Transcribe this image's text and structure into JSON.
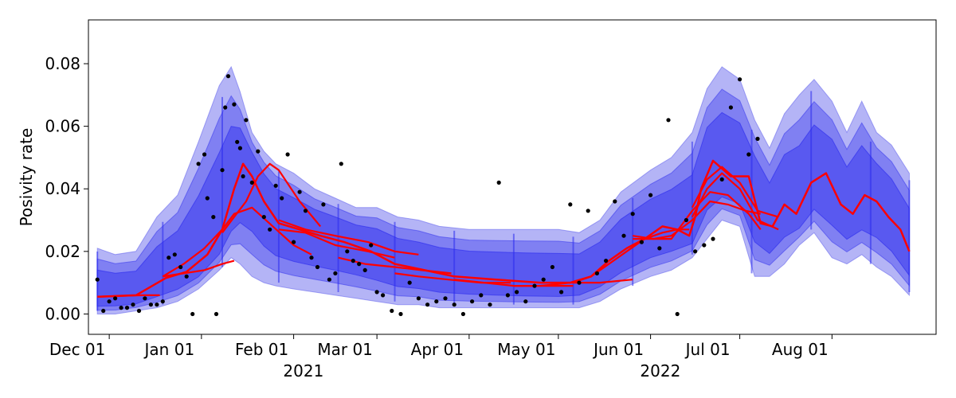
{
  "chart_data": {
    "type": "line",
    "title": "",
    "xlabel": "",
    "ylabel": "Posivity rate",
    "ylim": [
      -0.0065,
      0.094
    ],
    "xlim": [
      "2021-11-24",
      "2022-09-05"
    ],
    "grid": false,
    "legend": "none",
    "y_ticks": [
      0.0,
      0.02,
      0.04,
      0.06,
      0.08
    ],
    "y_tick_labels": [
      "0.00",
      "0.02",
      "0.04",
      "0.06",
      "0.08"
    ],
    "x_ticks": [
      "2021-12-01",
      "2022-01-01",
      "2022-02-01",
      "2022-03-01",
      "2022-04-01",
      "2022-05-01",
      "2022-06-01",
      "2022-07-01",
      "2022-08-01"
    ],
    "x_tick_labels": [
      "Dec 01",
      "Jan 01",
      "Feb 01",
      "Mar 01",
      "Apr 01",
      "May 01",
      "Jun 01",
      "Jul 01",
      "Aug 01"
    ],
    "year_labels": [
      {
        "text": "2021",
        "date": "2022-02-15"
      },
      {
        "text": "2022",
        "date": "2022-06-15"
      }
    ],
    "colors": {
      "outer_band": "#6a6aee",
      "mid_band": "#4040ee",
      "inner_band": "#2a2aee",
      "forecast_line": "#ff0000",
      "observations": "#000000"
    },
    "band_envelope": {
      "dates": [
        "2021-11-27",
        "2021-12-03",
        "2021-12-10",
        "2021-12-17",
        "2021-12-24",
        "2021-12-31",
        "2022-01-07",
        "2022-01-11",
        "2022-01-14",
        "2022-01-18",
        "2022-01-22",
        "2022-01-26",
        "2022-02-01",
        "2022-02-08",
        "2022-02-15",
        "2022-02-22",
        "2022-03-01",
        "2022-03-08",
        "2022-03-15",
        "2022-03-22",
        "2022-04-01",
        "2022-04-10",
        "2022-04-20",
        "2022-05-01",
        "2022-05-08",
        "2022-05-15",
        "2022-05-22",
        "2022-06-01",
        "2022-06-08",
        "2022-06-15",
        "2022-06-20",
        "2022-06-25",
        "2022-07-01",
        "2022-07-06",
        "2022-07-11",
        "2022-07-16",
        "2022-07-21",
        "2022-07-26",
        "2022-08-01",
        "2022-08-06",
        "2022-08-11",
        "2022-08-16",
        "2022-08-21",
        "2022-08-27"
      ],
      "upper": [
        0.021,
        0.019,
        0.02,
        0.031,
        0.038,
        0.055,
        0.073,
        0.079,
        0.071,
        0.058,
        0.052,
        0.048,
        0.045,
        0.04,
        0.037,
        0.034,
        0.034,
        0.031,
        0.03,
        0.028,
        0.027,
        0.027,
        0.027,
        0.027,
        0.026,
        0.03,
        0.039,
        0.046,
        0.05,
        0.058,
        0.072,
        0.079,
        0.075,
        0.062,
        0.053,
        0.064,
        0.07,
        0.075,
        0.068,
        0.058,
        0.068,
        0.058,
        0.054,
        0.045
      ],
      "lower": [
        0.0,
        0.0,
        0.001,
        0.002,
        0.004,
        0.008,
        0.014,
        0.018,
        0.016,
        0.012,
        0.01,
        0.009,
        0.008,
        0.007,
        0.006,
        0.005,
        0.004,
        0.003,
        0.003,
        0.002,
        0.002,
        0.002,
        0.002,
        0.002,
        0.002,
        0.004,
        0.008,
        0.012,
        0.014,
        0.018,
        0.024,
        0.03,
        0.028,
        0.012,
        0.012,
        0.016,
        0.022,
        0.026,
        0.018,
        0.016,
        0.019,
        0.015,
        0.012,
        0.006
      ]
    },
    "band_starts": [
      "2021-11-27",
      "2021-12-19",
      "2022-01-08",
      "2022-01-27",
      "2022-02-16",
      "2022-03-07",
      "2022-03-27",
      "2022-04-16",
      "2022-05-06",
      "2022-05-26",
      "2022-06-15",
      "2022-07-05",
      "2022-07-25",
      "2022-08-14",
      "2022-08-27"
    ],
    "series": [
      {
        "name": "",
        "x": [
          "2021-11-27",
          "2021-12-10",
          "2021-12-20",
          "2021-12-27",
          "2022-01-03",
          "2022-01-08",
          "2022-01-12",
          "2022-01-15",
          "2022-01-18",
          "2022-01-22",
          "2022-01-27",
          "2022-02-03",
          "2022-02-10",
          "2022-02-18",
          "2022-02-27",
          "2022-03-07",
          "2022-03-17",
          "2022-03-27",
          "2022-04-10",
          "2022-04-25",
          "2022-05-05",
          "2022-05-12",
          "2022-05-18",
          "2022-05-24",
          "2022-05-30",
          "2022-06-05",
          "2022-06-10",
          "2022-06-14",
          "2022-06-16",
          "2022-06-18",
          "2022-06-22",
          "2022-06-28",
          "2022-07-04",
          "2022-07-08",
          "2022-07-12",
          "2022-07-16",
          "2022-07-20",
          "2022-07-25",
          "2022-07-30",
          "2022-08-04",
          "2022-08-08",
          "2022-08-12",
          "2022-08-16",
          "2022-08-20",
          "2022-08-24",
          "2022-08-27"
        ],
        "y": [
          0.0055,
          0.006,
          0.0115,
          0.0135,
          0.019,
          0.027,
          0.04,
          0.048,
          0.044,
          0.036,
          0.029,
          0.027,
          0.025,
          0.023,
          0.02,
          0.016,
          0.014,
          0.012,
          0.011,
          0.01,
          0.01,
          0.012,
          0.017,
          0.021,
          0.024,
          0.028,
          0.027,
          0.025,
          0.031,
          0.04,
          0.049,
          0.044,
          0.044,
          0.029,
          0.028,
          0.035,
          0.032,
          0.042,
          0.045,
          0.035,
          0.032,
          0.038,
          0.036,
          0.031,
          0.027,
          0.02
        ]
      }
    ],
    "forecast_segments": [
      {
        "x": [
          "2021-11-27",
          "2021-12-05",
          "2021-12-12",
          "2021-12-18"
        ],
        "y": [
          0.0055,
          0.0058,
          0.006,
          0.006
        ]
      },
      {
        "x": [
          "2021-12-19",
          "2021-12-26",
          "2022-01-02",
          "2022-01-08",
          "2022-01-12"
        ],
        "y": [
          0.012,
          0.013,
          0.014,
          0.016,
          0.017
        ]
      },
      {
        "x": [
          "2021-12-19",
          "2021-12-26",
          "2022-01-02",
          "2022-01-08",
          "2022-01-12",
          "2022-01-18",
          "2022-01-25",
          "2022-02-01",
          "2022-02-07"
        ],
        "y": [
          0.012,
          0.016,
          0.021,
          0.027,
          0.032,
          0.034,
          0.028,
          0.022,
          0.019
        ]
      },
      {
        "x": [
          "2022-01-08",
          "2022-01-12",
          "2022-01-16",
          "2022-01-20",
          "2022-01-24",
          "2022-01-27",
          "2022-02-03",
          "2022-02-10"
        ],
        "y": [
          0.026,
          0.031,
          0.036,
          0.044,
          0.048,
          0.046,
          0.036,
          0.028
        ]
      },
      {
        "x": [
          "2022-01-27",
          "2022-02-05",
          "2022-02-15",
          "2022-02-26",
          "2022-03-07",
          "2022-03-15"
        ],
        "y": [
          0.03,
          0.027,
          0.025,
          0.023,
          0.02,
          0.019
        ]
      },
      {
        "x": [
          "2022-01-27",
          "2022-02-05",
          "2022-02-15",
          "2022-02-26",
          "2022-03-07"
        ],
        "y": [
          0.027,
          0.026,
          0.022,
          0.02,
          0.018
        ]
      },
      {
        "x": [
          "2022-02-16",
          "2022-02-25",
          "2022-03-07",
          "2022-03-16",
          "2022-03-26"
        ],
        "y": [
          0.018,
          0.016,
          0.015,
          0.014,
          0.013
        ]
      },
      {
        "x": [
          "2022-03-07",
          "2022-03-15",
          "2022-03-25",
          "2022-04-05",
          "2022-04-15"
        ],
        "y": [
          0.013,
          0.012,
          0.011,
          0.01,
          0.01
        ]
      },
      {
        "x": [
          "2022-03-27",
          "2022-04-06",
          "2022-04-16",
          "2022-04-28",
          "2022-05-06"
        ],
        "y": [
          0.011,
          0.01,
          0.009,
          0.009,
          0.009
        ]
      },
      {
        "x": [
          "2022-04-16",
          "2022-04-25",
          "2022-05-05",
          "2022-05-15",
          "2022-05-26"
        ],
        "y": [
          0.009,
          0.009,
          0.01,
          0.01,
          0.011
        ]
      },
      {
        "x": [
          "2022-05-06",
          "2022-05-12",
          "2022-05-18",
          "2022-05-24",
          "2022-05-30",
          "2022-06-05",
          "2022-06-10",
          "2022-06-14"
        ],
        "y": [
          0.01,
          0.012,
          0.016,
          0.02,
          0.024,
          0.026,
          0.027,
          0.027
        ]
      },
      {
        "x": [
          "2022-05-26",
          "2022-06-02",
          "2022-06-08",
          "2022-06-15",
          "2022-06-21",
          "2022-06-27",
          "2022-07-03",
          "2022-07-08"
        ],
        "y": [
          0.024,
          0.024,
          0.025,
          0.03,
          0.036,
          0.035,
          0.033,
          0.032
        ]
      },
      {
        "x": [
          "2022-05-26",
          "2022-06-02",
          "2022-06-08",
          "2022-06-15",
          "2022-06-21",
          "2022-06-27",
          "2022-07-04",
          "2022-07-08"
        ],
        "y": [
          0.025,
          0.024,
          0.024,
          0.033,
          0.039,
          0.038,
          0.032,
          0.027
        ]
      },
      {
        "x": [
          "2022-06-15",
          "2022-06-20",
          "2022-06-25",
          "2022-07-01",
          "2022-07-07",
          "2022-07-14"
        ],
        "y": [
          0.034,
          0.043,
          0.047,
          0.042,
          0.033,
          0.031
        ]
      },
      {
        "x": [
          "2022-06-15",
          "2022-06-20",
          "2022-06-25",
          "2022-07-01",
          "2022-07-07",
          "2022-07-14"
        ],
        "y": [
          0.031,
          0.04,
          0.045,
          0.04,
          0.03,
          0.027
        ]
      }
    ],
    "observations": {
      "x": [
        "2021-11-27",
        "2021-11-29",
        "2021-12-01",
        "2021-12-03",
        "2021-12-05",
        "2021-12-07",
        "2021-12-09",
        "2021-12-11",
        "2021-12-13",
        "2021-12-15",
        "2021-12-17",
        "2021-12-19",
        "2021-12-21",
        "2021-12-23",
        "2021-12-25",
        "2021-12-27",
        "2021-12-29",
        "2021-12-31",
        "2022-01-02",
        "2022-01-03",
        "2022-01-05",
        "2022-01-06",
        "2022-01-08",
        "2022-01-09",
        "2022-01-10",
        "2022-01-12",
        "2022-01-13",
        "2022-01-14",
        "2022-01-15",
        "2022-01-16",
        "2022-01-18",
        "2022-01-20",
        "2022-01-22",
        "2022-01-24",
        "2022-01-26",
        "2022-01-28",
        "2022-01-30",
        "2022-02-01",
        "2022-02-03",
        "2022-02-05",
        "2022-02-07",
        "2022-02-09",
        "2022-02-11",
        "2022-02-13",
        "2022-02-15",
        "2022-02-17",
        "2022-02-19",
        "2022-02-21",
        "2022-02-23",
        "2022-02-25",
        "2022-02-27",
        "2022-03-01",
        "2022-03-03",
        "2022-03-06",
        "2022-03-09",
        "2022-03-12",
        "2022-03-15",
        "2022-03-18",
        "2022-03-21",
        "2022-03-24",
        "2022-03-27",
        "2022-03-30",
        "2022-04-02",
        "2022-04-05",
        "2022-04-08",
        "2022-04-11",
        "2022-04-14",
        "2022-04-17",
        "2022-04-20",
        "2022-04-23",
        "2022-04-26",
        "2022-04-29",
        "2022-05-02",
        "2022-05-05",
        "2022-05-08",
        "2022-05-11",
        "2022-05-14",
        "2022-05-17",
        "2022-05-20",
        "2022-05-23",
        "2022-05-26",
        "2022-05-29",
        "2022-06-01",
        "2022-06-04",
        "2022-06-07",
        "2022-06-10",
        "2022-06-13",
        "2022-06-16",
        "2022-06-19",
        "2022-06-22",
        "2022-06-25",
        "2022-06-28",
        "2022-07-01",
        "2022-07-04",
        "2022-07-07"
      ],
      "y": [
        0.011,
        0.001,
        0.004,
        0.005,
        0.002,
        0.002,
        0.003,
        0.001,
        0.005,
        0.003,
        0.003,
        0.004,
        0.018,
        0.019,
        0.015,
        0.012,
        0.0,
        0.048,
        0.051,
        0.037,
        0.031,
        0.0,
        0.046,
        0.066,
        0.076,
        0.067,
        0.055,
        0.053,
        0.044,
        0.062,
        0.042,
        0.052,
        0.031,
        0.027,
        0.041,
        0.037,
        0.051,
        0.023,
        0.039,
        0.033,
        0.018,
        0.015,
        0.035,
        0.011,
        0.013,
        0.048,
        0.02,
        0.017,
        0.016,
        0.014,
        0.022,
        0.007,
        0.006,
        0.001,
        0.0,
        0.01,
        0.005,
        0.003,
        0.004,
        0.005,
        0.003,
        0.0,
        0.004,
        0.006,
        0.003,
        0.042,
        0.006,
        0.007,
        0.004,
        0.009,
        0.011,
        0.015,
        0.007,
        0.035,
        0.01,
        0.033,
        0.013,
        0.017,
        0.036,
        0.025,
        0.032,
        0.023,
        0.038,
        0.021,
        0.062,
        0.0,
        0.03,
        0.02,
        0.022,
        0.024,
        0.043,
        0.066,
        0.075,
        0.051,
        0.056
      ]
    },
    "annotations": []
  }
}
